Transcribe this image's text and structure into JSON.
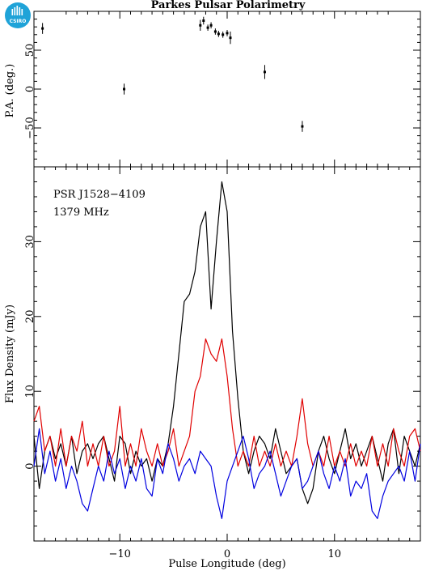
{
  "logo_text": "CSIRO",
  "chart_data": [
    {
      "type": "scatter",
      "title": "Parkes Pulsar Polarimetry",
      "ylabel": "P.A. (deg.)",
      "xlim": [
        -18,
        18
      ],
      "ylim": [
        -100,
        100
      ],
      "yticks": [
        -50,
        0,
        50
      ],
      "ytick_labels": [
        "−50",
        "0",
        "50"
      ],
      "points": [
        {
          "x": -17.2,
          "y": 78,
          "err": 7
        },
        {
          "x": -9.6,
          "y": 0,
          "err": 7
        },
        {
          "x": -2.5,
          "y": 82,
          "err": 7
        },
        {
          "x": -2.2,
          "y": 88,
          "err": 5
        },
        {
          "x": -1.8,
          "y": 79,
          "err": 4
        },
        {
          "x": -1.5,
          "y": 82,
          "err": 4
        },
        {
          "x": -1.1,
          "y": 74,
          "err": 4
        },
        {
          "x": -0.8,
          "y": 71,
          "err": 4
        },
        {
          "x": -0.4,
          "y": 70,
          "err": 4
        },
        {
          "x": 0.0,
          "y": 72,
          "err": 4
        },
        {
          "x": 0.3,
          "y": 66,
          "err": 8
        },
        {
          "x": 3.5,
          "y": 22,
          "err": 9
        },
        {
          "x": 7.0,
          "y": -48,
          "err": 7
        }
      ]
    },
    {
      "type": "line",
      "xlabel": "Pulse Longitude (deg)",
      "ylabel": "Flux Density (mJy)",
      "xlim": [
        -18,
        18
      ],
      "ylim": [
        -10,
        40
      ],
      "xticks": [
        -10,
        0,
        10
      ],
      "xtick_labels": [
        "−10",
        "0",
        "10"
      ],
      "yticks": [
        0,
        10,
        20,
        30
      ],
      "ytick_labels": [
        "0",
        "10",
        "20",
        "30"
      ],
      "annotations": [
        "PSR J1528−4109",
        "1379 MHz"
      ],
      "series": [
        {
          "color": "#000000",
          "x": [
            -18,
            -17.5,
            -17,
            -16.5,
            -16,
            -15.5,
            -15,
            -14.5,
            -14,
            -13.5,
            -13,
            -12.5,
            -12,
            -11.5,
            -11,
            -10.5,
            -10,
            -9.5,
            -9,
            -8.5,
            -8,
            -7.5,
            -7,
            -6.5,
            -6,
            -5.5,
            -5,
            -4.5,
            -4,
            -3.5,
            -3,
            -2.5,
            -2,
            -1.5,
            -1,
            -0.5,
            0,
            0.5,
            1,
            1.5,
            2,
            2.5,
            3,
            3.5,
            4,
            4.5,
            5,
            5.5,
            6,
            6.5,
            7,
            7.5,
            8,
            8.5,
            9,
            9.5,
            10,
            10.5,
            11,
            11.5,
            12,
            12.5,
            13,
            13.5,
            14,
            14.5,
            15,
            15.5,
            16,
            16.5,
            17,
            17.5,
            18
          ],
          "y": [
            4,
            -3,
            2,
            4,
            1,
            3,
            0,
            4,
            -1,
            2,
            3,
            1,
            3,
            4,
            1,
            -2,
            4,
            3,
            -1,
            2,
            0,
            1,
            -2,
            1,
            0,
            3,
            8,
            15,
            22,
            23,
            26,
            32,
            34,
            21,
            30,
            38,
            34,
            18,
            9,
            2,
            -1,
            2,
            4,
            3,
            1,
            5,
            2,
            -1,
            0,
            1,
            -3,
            -5,
            -3,
            2,
            4,
            1,
            -1,
            2,
            5,
            1,
            3,
            0,
            2,
            4,
            1,
            -2,
            3,
            5,
            -1,
            4,
            2,
            0,
            3
          ]
        },
        {
          "color": "#e00000",
          "x": [
            -18,
            -17.5,
            -17,
            -16.5,
            -16,
            -15.5,
            -15,
            -14.5,
            -14,
            -13.5,
            -13,
            -12.5,
            -12,
            -11.5,
            -11,
            -10.5,
            -10,
            -9.5,
            -9,
            -8.5,
            -8,
            -7.5,
            -7,
            -6.5,
            -6,
            -5.5,
            -5,
            -4.5,
            -4,
            -3.5,
            -3,
            -2.5,
            -2,
            -1.5,
            -1,
            -0.5,
            0,
            0.5,
            1,
            1.5,
            2,
            2.5,
            3,
            3.5,
            4,
            4.5,
            5,
            5.5,
            6,
            6.5,
            7,
            7.5,
            8,
            8.5,
            9,
            9.5,
            10,
            10.5,
            11,
            11.5,
            12,
            12.5,
            13,
            13.5,
            14,
            14.5,
            15,
            15.5,
            16,
            16.5,
            17,
            17.5,
            18
          ],
          "y": [
            6,
            8,
            2,
            4,
            0,
            5,
            0,
            4,
            2,
            6,
            0,
            3,
            0,
            4,
            0,
            2,
            8,
            0,
            3,
            0,
            5,
            2,
            0,
            3,
            0,
            2,
            5,
            0,
            2,
            4,
            10,
            12,
            17,
            15,
            14,
            17,
            12,
            5,
            0,
            2,
            0,
            4,
            0,
            2,
            0,
            3,
            0,
            2,
            0,
            4,
            9,
            3,
            0,
            2,
            0,
            4,
            0,
            2,
            0,
            3,
            0,
            2,
            0,
            4,
            0,
            3,
            0,
            5,
            2,
            0,
            4,
            5,
            2
          ]
        },
        {
          "color": "#0000e0",
          "x": [
            -18,
            -17.5,
            -17,
            -16.5,
            -16,
            -15.5,
            -15,
            -14.5,
            -14,
            -13.5,
            -13,
            -12.5,
            -12,
            -11.5,
            -11,
            -10.5,
            -10,
            -9.5,
            -9,
            -8.5,
            -8,
            -7.5,
            -7,
            -6.5,
            -6,
            -5.5,
            -5,
            -4.5,
            -4,
            -3.5,
            -3,
            -2.5,
            -2,
            -1.5,
            -1,
            -0.5,
            0,
            0.5,
            1,
            1.5,
            2,
            2.5,
            3,
            3.5,
            4,
            4.5,
            5,
            5.5,
            6,
            6.5,
            7,
            7.5,
            8,
            8.5,
            9,
            9.5,
            10,
            10.5,
            11,
            11.5,
            12,
            12.5,
            13,
            13.5,
            14,
            14.5,
            15,
            15.5,
            16,
            16.5,
            17,
            17.5,
            18
          ],
          "y": [
            0,
            5,
            -1,
            2,
            -2,
            1,
            -3,
            0,
            -2,
            -5,
            -6,
            -3,
            0,
            -2,
            2,
            -1,
            1,
            -3,
            0,
            -2,
            1,
            -3,
            -4,
            1,
            -1,
            3,
            1,
            -2,
            0,
            1,
            -1,
            2,
            1,
            0,
            -4,
            -7,
            -2,
            0,
            2,
            4,
            1,
            -3,
            -1,
            0,
            2,
            -1,
            -4,
            -2,
            0,
            1,
            -3,
            -2,
            0,
            2,
            -1,
            -3,
            0,
            -2,
            1,
            -4,
            -2,
            -3,
            -1,
            -6,
            -7,
            -4,
            -2,
            -1,
            0,
            -2,
            2,
            -2,
            3
          ]
        }
      ]
    }
  ]
}
